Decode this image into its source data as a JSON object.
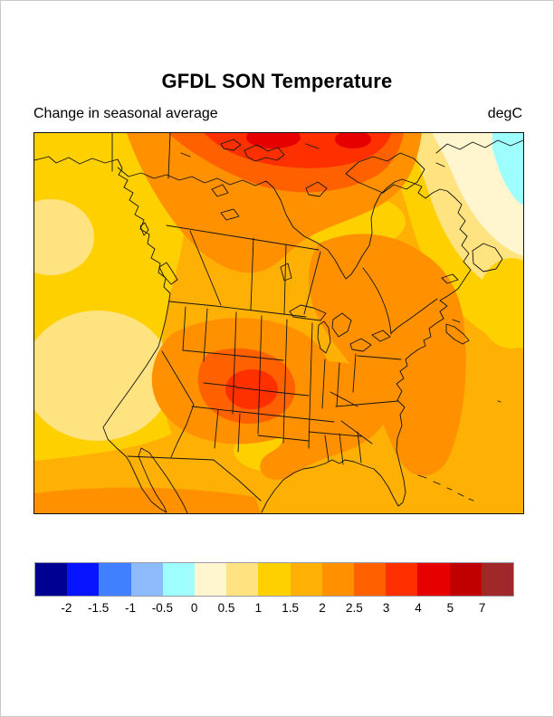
{
  "page": {
    "title": "GFDL SON Temperature",
    "subtitle_left": "Change in seasonal average",
    "unit_label": "degC"
  },
  "colorbar": {
    "levels": [
      "-2",
      "-1.5",
      "-1",
      "-0.5",
      "0",
      "0.5",
      "1",
      "1.5",
      "2",
      "2.5",
      "3",
      "4",
      "5",
      "7"
    ],
    "colors": [
      "#000091",
      "#0814ff",
      "#4080ff",
      "#8cbafa",
      "#9efefe",
      "#fff5ce",
      "#ffe380",
      "#ffd000",
      "#ffb005",
      "#ff9000",
      "#ff6000",
      "#ff3000",
      "#e60000",
      "#c00000",
      "#a02828"
    ]
  },
  "map": {
    "line_color": "#141414",
    "border_color": "#111111"
  },
  "chart_data": {
    "type": "heatmap",
    "title": "GFDL SON Temperature",
    "subtitle": "Change in seasonal average",
    "units": "degC",
    "geography": "North America with US state and Canadian province boundaries",
    "legend_position": "bottom",
    "contour_levels": [
      -2,
      -1.5,
      -1,
      -0.5,
      0,
      0.5,
      1,
      1.5,
      2,
      2.5,
      3,
      4,
      5,
      7
    ],
    "level_colors": [
      "#000091",
      "#0814ff",
      "#4080ff",
      "#8cbafa",
      "#9efefe",
      "#fff5ce",
      "#ffe380",
      "#ffd000",
      "#ffb005",
      "#ff9000",
      "#ff6000",
      "#ff3000",
      "#e60000",
      "#c00000",
      "#a02828"
    ],
    "region_values": [
      {
        "region": "High Arctic islands (top center)",
        "value_degC": "4 to 5"
      },
      {
        "region": "Arctic coast band (north-central Canada)",
        "value_degC": "3 to 4"
      },
      {
        "region": "Central Canada",
        "value_degC": "2 to 3"
      },
      {
        "region": "Hudson Bay vicinity",
        "value_degC": "1 to 1.5"
      },
      {
        "region": "Quebec / Labrador and northeast US coast",
        "value_degC": "2 to 2.5"
      },
      {
        "region": "Colorado / central Rockies core",
        "value_degC": "3 to 4"
      },
      {
        "region": "Colorado surrounding ring (west-central US)",
        "value_degC": "2.5 to 3"
      },
      {
        "region": "Southeast US (Tennessee to Virginia, gulf states)",
        "value_degC": "2 to 2.5"
      },
      {
        "region": "Oklahoma / north Texas patch",
        "value_degC": "1 to 1.5"
      },
      {
        "region": "Most of continental US and Mexico",
        "value_degC": "1.5 to 2"
      },
      {
        "region": "Pacific Ocean (west margin)",
        "value_degC": "1 to 1.5"
      },
      {
        "region": "Pacific patch off California",
        "value_degC": "0.5 to 1"
      },
      {
        "region": "Atlantic Ocean (east margin)",
        "value_degC": "1.5 to 2"
      },
      {
        "region": "Northwest Atlantic near Greenland (top right)",
        "value_degC": "0 to 0.5"
      },
      {
        "region": "Small cell at far top-right corner",
        "value_degC": "-0.5 to 0"
      }
    ]
  }
}
